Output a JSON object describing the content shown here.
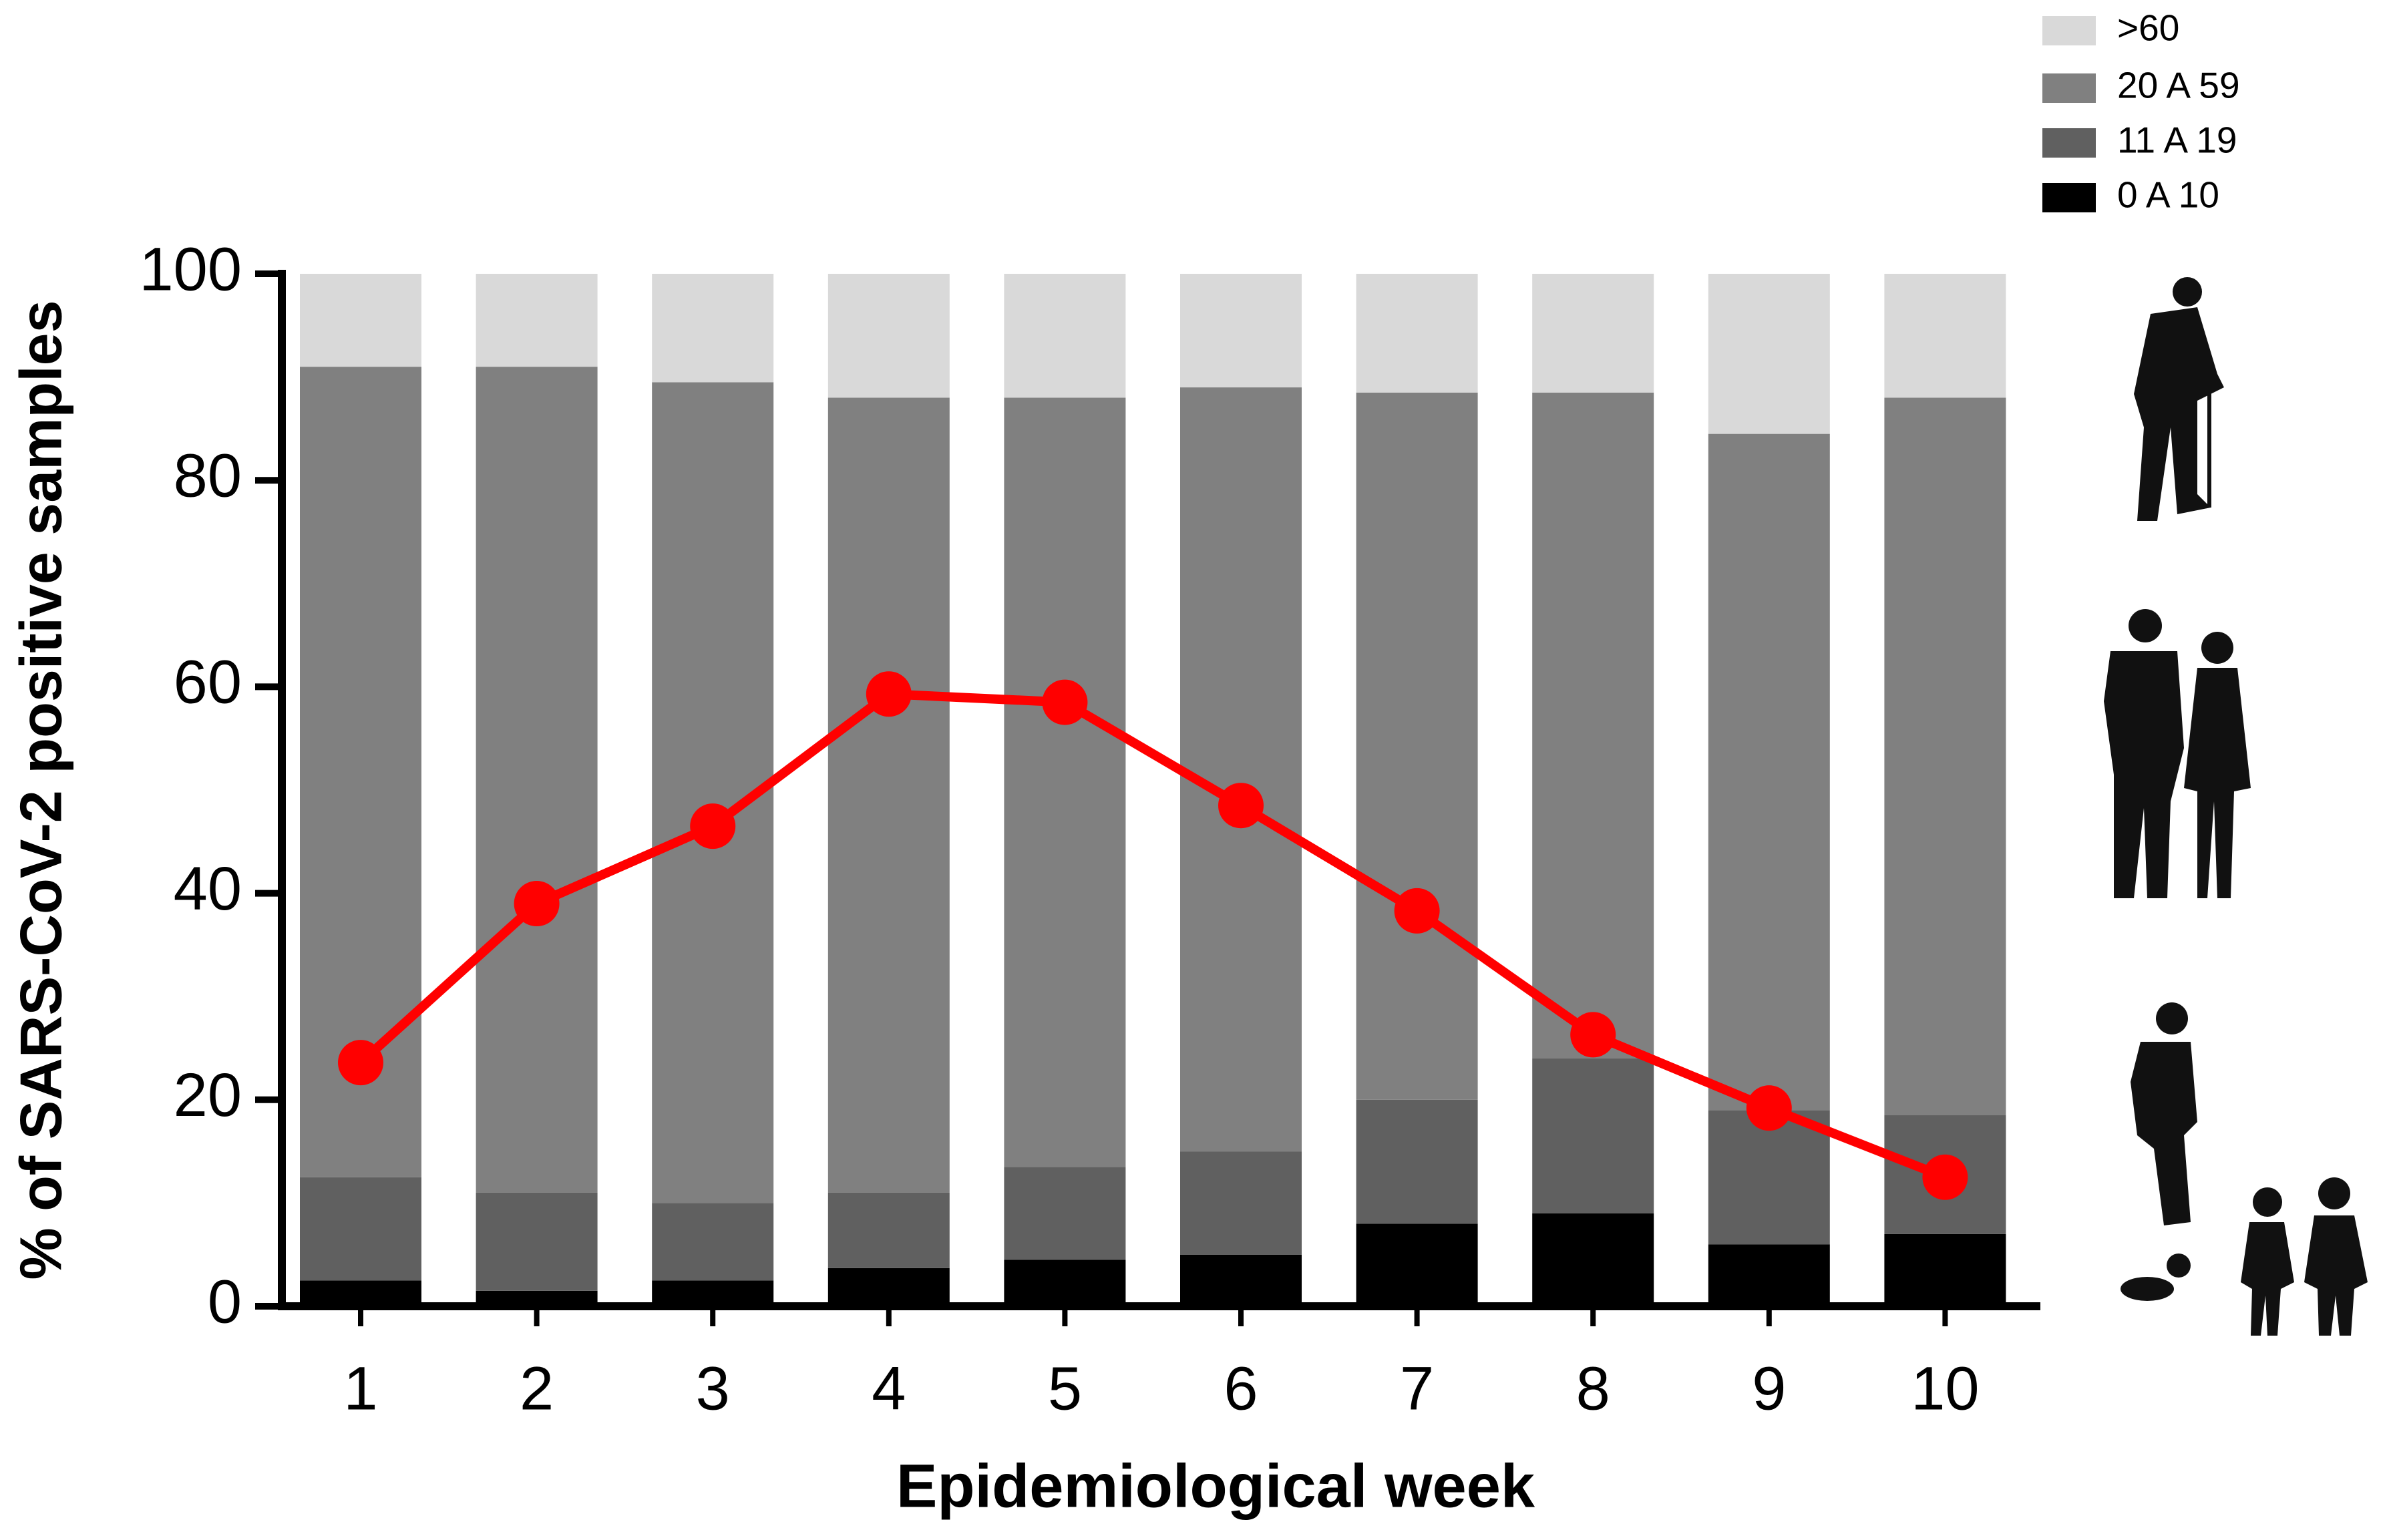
{
  "chart_data": {
    "type": "bar",
    "stacked": true,
    "x_label": "Epidemiological  week",
    "y_label": "% of SARS-CoV-2 positive samples",
    "categories": [
      "1",
      "2",
      "3",
      "4",
      "5",
      "6",
      "7",
      "8",
      "9",
      "10"
    ],
    "series": [
      {
        "name": "0 A 10",
        "color": "#000000",
        "values": [
          2.5,
          1.5,
          2.5,
          3.7,
          4.5,
          5,
          8,
          9,
          6,
          7
        ]
      },
      {
        "name": "11 A 19",
        "color": "#606060",
        "values": [
          10,
          9.5,
          7.5,
          7.3,
          9,
          10,
          12,
          15,
          13,
          11.5
        ]
      },
      {
        "name": "20 A 59",
        "color": "#808080",
        "values": [
          78.5,
          80,
          79.5,
          77,
          74.5,
          74,
          68.5,
          64.5,
          65.5,
          69.5
        ]
      },
      {
        "name": ">60",
        "color": "#d9d9d9",
        "values": [
          9,
          9,
          10.5,
          12,
          12,
          11,
          11.5,
          11.5,
          15.5,
          12
        ]
      }
    ],
    "line": {
      "color": "#ff0000",
      "values": [
        23.6,
        39,
        46.5,
        59.3,
        58.5,
        48.5,
        38.3,
        26.3,
        19.2,
        12.5
      ]
    },
    "ylim": [
      0,
      100
    ],
    "yticks": [
      0,
      20,
      40,
      60,
      80,
      100
    ],
    "legend": "top-right"
  }
}
